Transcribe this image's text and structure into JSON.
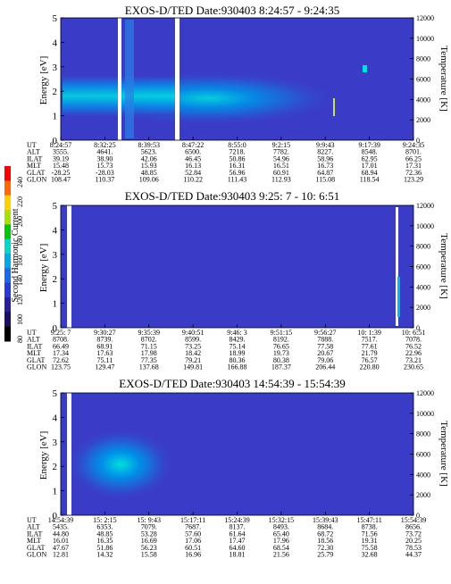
{
  "colorbar": {
    "label": "Second Harmonic Current",
    "ticks": [
      "240",
      "220",
      "200",
      "180",
      "160",
      "140",
      "120",
      "100",
      "80"
    ]
  },
  "chart_data": [
    {
      "type": "heatmap",
      "title": "EXOS-D/TED   Date:930403   8:24:57 - 9:24:35",
      "ylabel": "Energy [eV]",
      "y2label": "Temperature [K]",
      "ylim": [
        0,
        5
      ],
      "y2lim": [
        0,
        12000
      ],
      "yticks": [
        "0",
        "1",
        "2",
        "3",
        "4",
        "5"
      ],
      "y2ticks": [
        "0",
        "2000",
        "4000",
        "6000",
        "8000",
        "10000",
        "12000"
      ],
      "row_labels": [
        "UT",
        "ALT",
        "ILAT",
        "MLT",
        "GLAT",
        "GLON"
      ],
      "columns": [
        [
          "8:24:57",
          "3555.",
          "39.19",
          "15.48",
          "-28.25",
          "108.47"
        ],
        [
          "8:32:25",
          "4641.",
          "38.90",
          "15.73",
          "-28.03",
          "110.37"
        ],
        [
          "8:39:53",
          "5623.",
          "42.06",
          "15.93",
          "48.85",
          "109.06"
        ],
        [
          "8:47:22",
          "6500.",
          "46.45",
          "16.13",
          "52.84",
          "110.22"
        ],
        [
          "8:55:0",
          "7218.",
          "50.86",
          "16.31",
          "56.96",
          "111.43"
        ],
        [
          "9:2:15",
          "7782.",
          "54.96",
          "16.51",
          "60.91",
          "112.93"
        ],
        [
          "9:9:43",
          "8227.",
          "58.96",
          "16.73",
          "64.87",
          "115.08"
        ],
        [
          "9:17:39",
          "8548.",
          "62.95",
          "17.01",
          "68.94",
          "118.54"
        ],
        [
          "9:24:35",
          "8701.",
          "66.25",
          "17.31",
          "72.36",
          "123.29"
        ]
      ]
    },
    {
      "type": "heatmap",
      "title": "EXOS-D/TED   Date:930403   9:25: 7 - 10: 6:51",
      "ylabel": "Energy [eV]",
      "y2label": "Temperature [K]",
      "ylim": [
        0,
        5
      ],
      "y2lim": [
        0,
        12000
      ],
      "yticks": [
        "0",
        "1",
        "2",
        "3",
        "4",
        "5"
      ],
      "y2ticks": [
        "0",
        "2000",
        "4000",
        "6000",
        "8000",
        "10000",
        "12000"
      ],
      "row_labels": [
        "UT",
        "ALT",
        "ILAT",
        "MLT",
        "GLAT",
        "GLON"
      ],
      "columns": [
        [
          "9:25: 7",
          "8708.",
          "66.49",
          "17.34",
          "72.62",
          "123.75"
        ],
        [
          "9:30:27",
          "8739.",
          "68.91",
          "17.63",
          "75.11",
          "129.47"
        ],
        [
          "9:35:39",
          "8702.",
          "71.15",
          "17.98",
          "77.35",
          "137.68"
        ],
        [
          "9:40:51",
          "8599.",
          "73.25",
          "18.42",
          "79.21",
          "149.81"
        ],
        [
          "9:46: 3",
          "8429.",
          "75.14",
          "18.99",
          "80.36",
          "166.88"
        ],
        [
          "9:51:15",
          "8192.",
          "76.65",
          "19.73",
          "80.38",
          "187.37"
        ],
        [
          "9:56:27",
          "7888.",
          "77.58",
          "20.67",
          "79.06",
          "206.44"
        ],
        [
          "10: 1:39",
          "7517.",
          "77.61",
          "21.79",
          "76.57",
          "220.80"
        ],
        [
          "10: 6:51",
          "7078.",
          "76.52",
          "22.96",
          "73.21",
          "230.65"
        ]
      ]
    },
    {
      "type": "heatmap",
      "title": "EXOS-D/TED   Date:930403   14:54:39 - 15:54:39",
      "ylabel": "Energy [eV]",
      "y2label": "Temperature [K]",
      "ylim": [
        0,
        5
      ],
      "y2lim": [
        0,
        12000
      ],
      "yticks": [
        "0",
        "1",
        "2",
        "3",
        "4",
        "5"
      ],
      "y2ticks": [
        "0",
        "2000",
        "4000",
        "6000",
        "8000",
        "10000",
        "12000"
      ],
      "row_labels": [
        "UT",
        "ALT",
        "ILAT",
        "MLT",
        "GLAT",
        "GLON"
      ],
      "columns": [
        [
          "14:54:39",
          "5435.",
          "44.80",
          "16.01",
          "47.67",
          "12.81"
        ],
        [
          "15: 2:15",
          "6353.",
          "48.85",
          "16.35",
          "51.86",
          "14.32"
        ],
        [
          "15: 9:43",
          "7079.",
          "53.28",
          "16.69",
          "56.23",
          "15.58"
        ],
        [
          "15:17:11",
          "7687.",
          "57.60",
          "17.06",
          "60.51",
          "16.96"
        ],
        [
          "15:24:39",
          "8137.",
          "61.64",
          "17.47",
          "64.60",
          "18.81"
        ],
        [
          "15:32:15",
          "8493.",
          "65.40",
          "17.96",
          "68.54",
          "21.56"
        ],
        [
          "15:39:43",
          "8684.",
          "68.72",
          "18.56",
          "72.30",
          "25.79"
        ],
        [
          "15:47:11",
          "8738.",
          "71.56",
          "19.31",
          "75.58",
          "32.68"
        ],
        [
          "15:54:39",
          "8656.",
          "73.72",
          "20.25",
          "78.53",
          "44.37"
        ]
      ]
    }
  ]
}
